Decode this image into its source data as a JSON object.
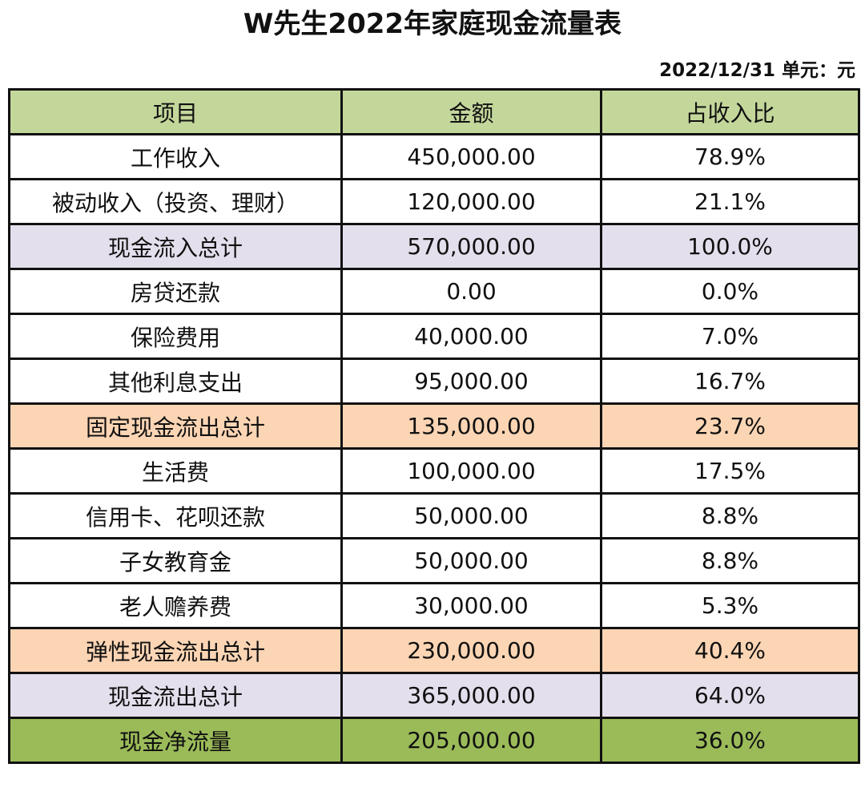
{
  "document": {
    "title": "W先生2022年家庭现金流量表",
    "date": "2022/12/31",
    "unit_label": "单元：元"
  },
  "table": {
    "headers": [
      "项目",
      "金额",
      "占收入比"
    ],
    "rows": [
      {
        "item": "工作收入",
        "amount": "450,000.00",
        "ratio": "78.9%",
        "type": "normal"
      },
      {
        "item": "被动收入（投资、理财）",
        "amount": "120,000.00",
        "ratio": "21.1%",
        "type": "normal"
      },
      {
        "item": "现金流入总计",
        "amount": "570,000.00",
        "ratio": "100.0%",
        "type": "sub-in"
      },
      {
        "item": "房贷还款",
        "amount": "0.00",
        "ratio": "0.0%",
        "type": "normal"
      },
      {
        "item": "保险费用",
        "amount": "40,000.00",
        "ratio": "7.0%",
        "type": "normal"
      },
      {
        "item": "其他利息支出",
        "amount": "95,000.00",
        "ratio": "16.7%",
        "type": "normal"
      },
      {
        "item": "固定现金流出总计",
        "amount": "135,000.00",
        "ratio": "23.7%",
        "type": "sub-fixed"
      },
      {
        "item": "生活费",
        "amount": "100,000.00",
        "ratio": "17.5%",
        "type": "normal"
      },
      {
        "item": "信用卡、花呗还款",
        "amount": "50,000.00",
        "ratio": "8.8%",
        "type": "normal"
      },
      {
        "item": "子女教育金",
        "amount": "50,000.00",
        "ratio": "8.8%",
        "type": "normal"
      },
      {
        "item": "老人赡养费",
        "amount": "30,000.00",
        "ratio": "5.3%",
        "type": "normal"
      },
      {
        "item": "弹性现金流出总计",
        "amount": "230,000.00",
        "ratio": "40.4%",
        "type": "sub-flex"
      },
      {
        "item": "现金流出总计",
        "amount": "365,000.00",
        "ratio": "64.0%",
        "type": "sub-out"
      },
      {
        "item": "现金净流量",
        "amount": "205,000.00",
        "ratio": "36.0%",
        "type": "net"
      }
    ]
  },
  "colors": {
    "header_bg": "#c4d79b",
    "inflow_total_bg": "#e4dfec",
    "outflow_subtotal_bg": "#fcd5b4",
    "outflow_total_bg": "#e4dfec",
    "net_flow_bg": "#9bbb59",
    "border": "#111111"
  }
}
